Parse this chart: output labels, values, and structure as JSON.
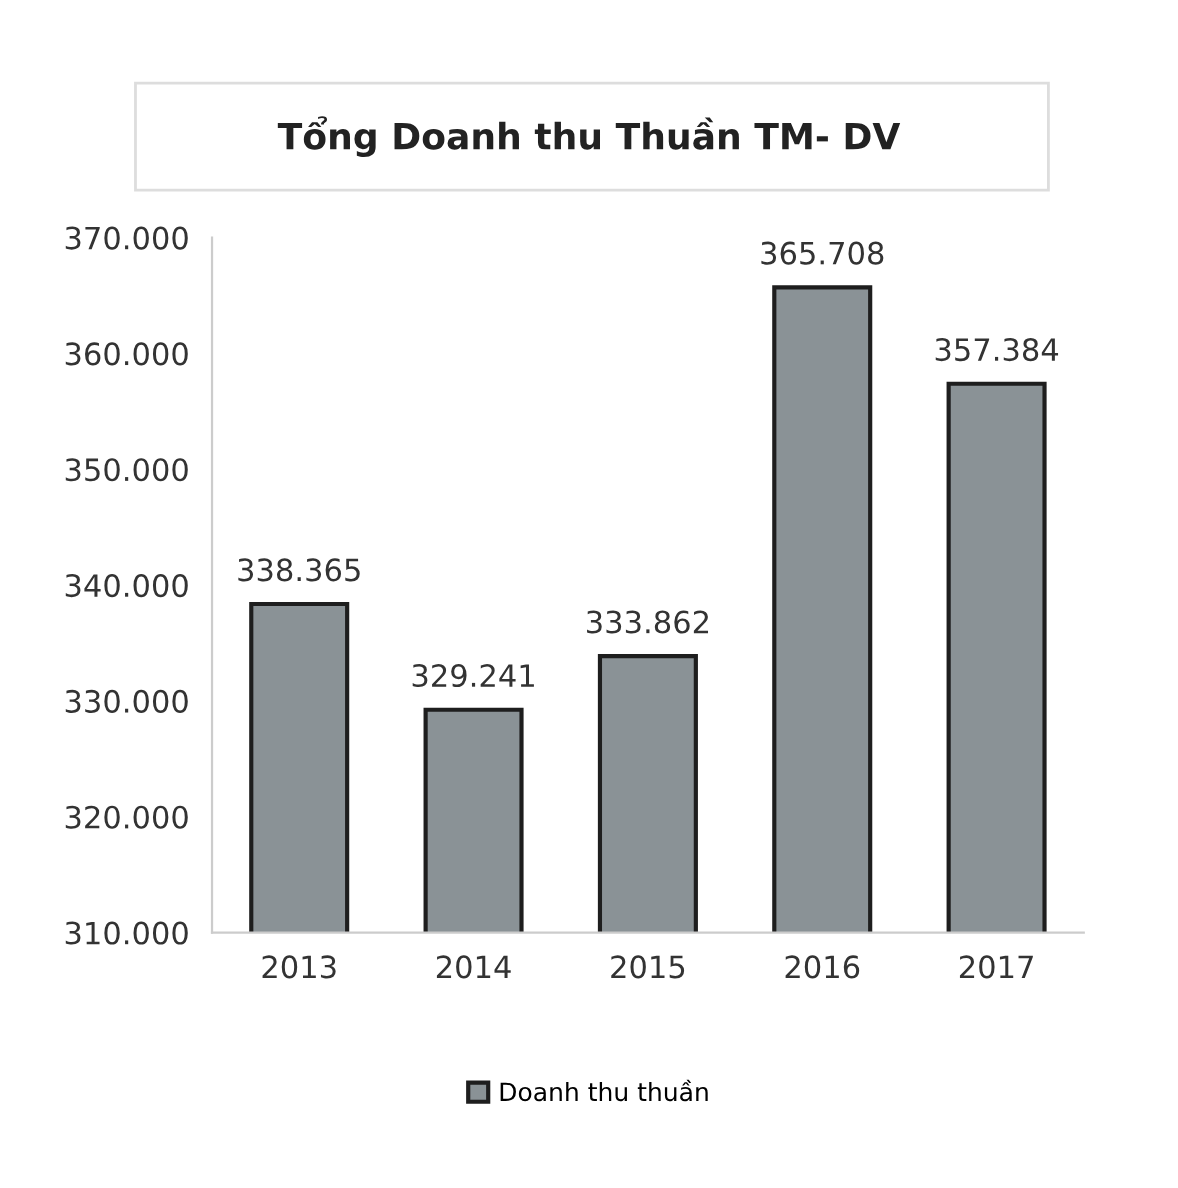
{
  "chart_data": {
    "type": "bar",
    "title": "Tổng Doanh thu Thuần TM- DV",
    "categories": [
      "2013",
      "2014",
      "2015",
      "2016",
      "2017"
    ],
    "series": [
      {
        "name": "Doanh thu thuần",
        "color": "#8a9296",
        "values": [
          338365,
          329241,
          333862,
          365708,
          357384
        ],
        "value_labels": [
          "338.365",
          "329.241",
          "333.862",
          "365.708",
          "357.384"
        ]
      }
    ],
    "ylim": [
      310000,
      370000
    ],
    "yticks": [
      {
        "value": 310000,
        "label": "310.000"
      },
      {
        "value": 320000,
        "label": "320.000"
      },
      {
        "value": 330000,
        "label": "330.000"
      },
      {
        "value": 340000,
        "label": "340.000"
      },
      {
        "value": 350000,
        "label": "350.000"
      },
      {
        "value": 360000,
        "label": "360.000"
      },
      {
        "value": 370000,
        "label": "370.000"
      }
    ],
    "grid": false,
    "legend": "bottom"
  }
}
